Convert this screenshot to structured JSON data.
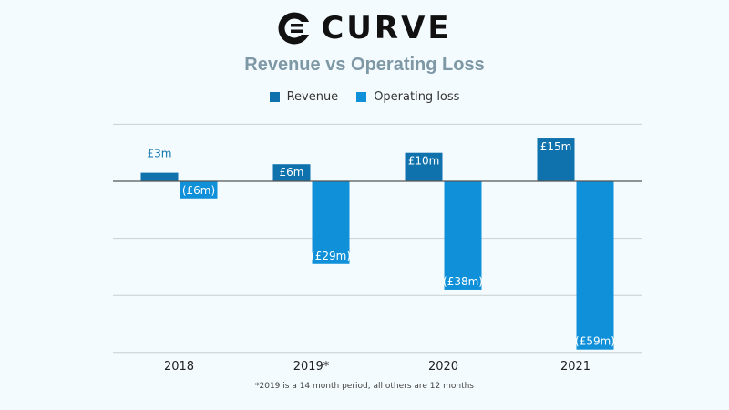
{
  "brand": {
    "name": "CURVE",
    "logo_icon": "curve-logo-icon"
  },
  "colors": {
    "revenue": "#0f72ad",
    "operating_loss": "#0f90d8",
    "title": "#7e98a6",
    "gridline": "#c8cfd4",
    "zero_line": "#555555"
  },
  "chart_data": {
    "type": "bar",
    "title": "Revenue vs Operating Loss",
    "categories": [
      "2018",
      "2019*",
      "2020",
      "2021"
    ],
    "series": [
      {
        "name": "Revenue",
        "values": [
          3,
          6,
          10,
          15
        ],
        "labels": [
          "£3m",
          "£6m",
          "£10m",
          "£15m"
        ]
      },
      {
        "name": "Operating loss",
        "values": [
          -6,
          -29,
          -38,
          -59
        ],
        "labels": [
          "(£6m)",
          "(£29m)",
          "(£38m)",
          "(£59m)"
        ]
      }
    ],
    "ylim": [
      -60,
      20
    ],
    "grid": true,
    "legend_position": "top-center",
    "footnote": "*2019 is a 14 month period, all others are 12 months"
  }
}
